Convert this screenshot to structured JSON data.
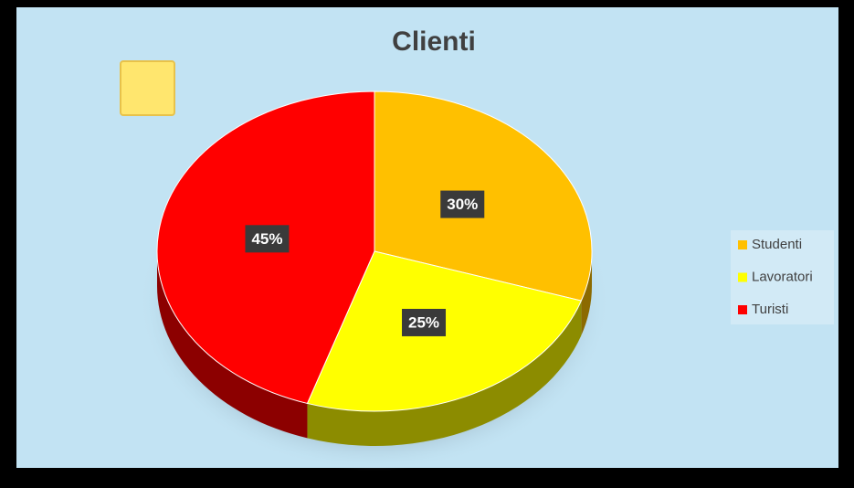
{
  "chart_data": {
    "type": "pie",
    "title": "Clienti",
    "categories": [
      "Studenti",
      "Lavoratori",
      "Turisti"
    ],
    "values": [
      30,
      25,
      45
    ],
    "value_labels": [
      "30%",
      "25%",
      "45%"
    ],
    "colors": [
      "#FFC000",
      "#FFFF00",
      "#FF0000"
    ],
    "legend": "right"
  }
}
